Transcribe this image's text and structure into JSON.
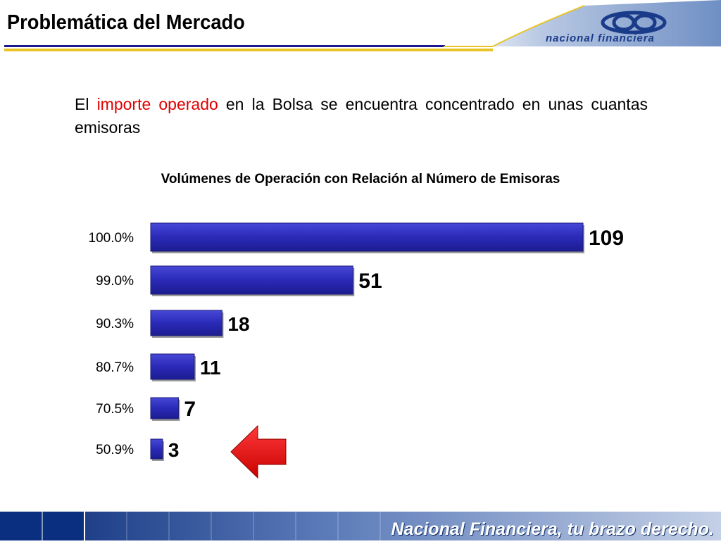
{
  "page": {
    "title": "Problemática del Mercado",
    "logo_text": "nacional financiera",
    "intro": {
      "before": "El ",
      "highlight": "importe operado",
      "after": " en la Bolsa se encuentra concentrado en unas cuantas emisoras"
    },
    "footer_tagline": "Nacional Financiera, tu brazo derecho."
  },
  "colors": {
    "bar_fill": "#2a2ab8",
    "bar_edge": "#1a1a7a",
    "highlight_text": "#e00000",
    "arrow": "#e00000",
    "title_rule_blue": "#1a1a8c",
    "title_rule_gold": "#e8c428"
  },
  "chart_data": {
    "type": "bar",
    "orientation": "horizontal",
    "title": "Volúmenes de Operación con Relación al Número de Emisoras",
    "categories": [
      "100.0%",
      "99.0%",
      "90.3%",
      "80.7%",
      "70.5%",
      "50.9%"
    ],
    "values": [
      109,
      51,
      18,
      11,
      7,
      3
    ],
    "data_labels": [
      "109",
      "51",
      "18",
      "11",
      "7",
      "3"
    ],
    "xlim": [
      0,
      109
    ],
    "grid": false,
    "legend": "none",
    "annotation": "red arrow pointing at the 50.9% bar"
  }
}
